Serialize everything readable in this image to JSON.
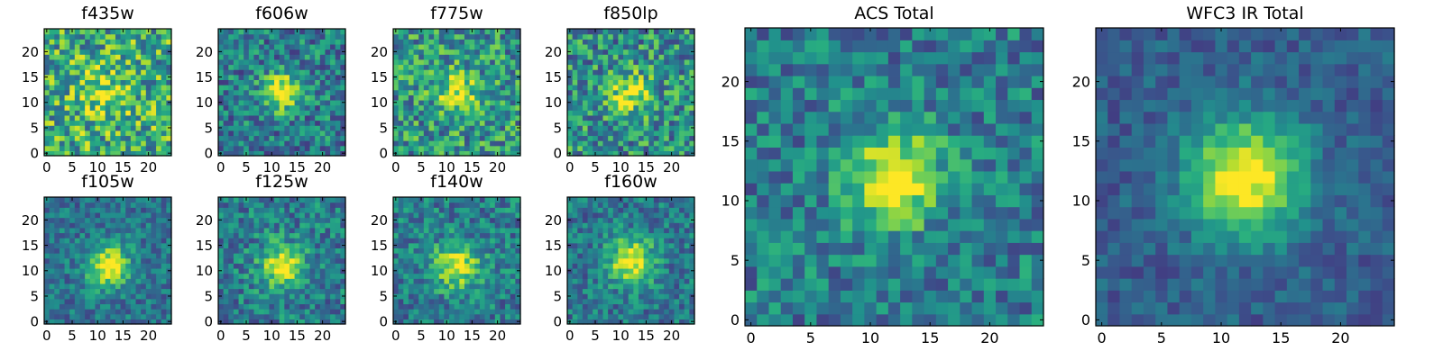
{
  "chart_data": [
    {
      "type": "heatmap",
      "title": "f435w",
      "xlim": [
        0,
        25
      ],
      "ylim": [
        0,
        25
      ],
      "x_ticks": [
        0,
        5,
        10,
        15,
        20
      ],
      "y_ticks": [
        0,
        5,
        10,
        15,
        20
      ],
      "peak": [
        11,
        12
      ],
      "peak_sigma": 3.5,
      "peak_amplitude": 0.25,
      "background": 0.62,
      "noise": 0.34,
      "seed": 11,
      "colormap": "viridis"
    },
    {
      "type": "heatmap",
      "title": "f606w",
      "xlim": [
        0,
        25
      ],
      "ylim": [
        0,
        25
      ],
      "x_ticks": [
        0,
        5,
        10,
        15,
        20
      ],
      "y_ticks": [
        0,
        5,
        10,
        15,
        20
      ],
      "peak": [
        12,
        12
      ],
      "peak_sigma": 2.6,
      "peak_amplitude": 0.62,
      "background": 0.42,
      "noise": 0.26,
      "seed": 22,
      "colormap": "viridis"
    },
    {
      "type": "heatmap",
      "title": "f775w",
      "xlim": [
        0,
        25
      ],
      "ylim": [
        0,
        25
      ],
      "x_ticks": [
        0,
        5,
        10,
        15,
        20
      ],
      "y_ticks": [
        0,
        5,
        10,
        15,
        20
      ],
      "peak": [
        12,
        12
      ],
      "peak_sigma": 2.8,
      "peak_amplitude": 0.45,
      "background": 0.52,
      "noise": 0.3,
      "seed": 33,
      "colormap": "viridis"
    },
    {
      "type": "heatmap",
      "title": "f850lp",
      "xlim": [
        0,
        25
      ],
      "ylim": [
        0,
        25
      ],
      "x_ticks": [
        0,
        5,
        10,
        15,
        20
      ],
      "y_ticks": [
        0,
        5,
        10,
        15,
        20
      ],
      "peak": [
        12,
        12
      ],
      "peak_sigma": 2.7,
      "peak_amplitude": 0.48,
      "background": 0.5,
      "noise": 0.3,
      "seed": 44,
      "colormap": "viridis"
    },
    {
      "type": "heatmap",
      "title": "f105w",
      "xlim": [
        0,
        25
      ],
      "ylim": [
        0,
        25
      ],
      "x_ticks": [
        0,
        5,
        10,
        15,
        20
      ],
      "y_ticks": [
        0,
        5,
        10,
        15,
        20
      ],
      "peak": [
        12,
        11
      ],
      "peak_sigma": 3.0,
      "peak_amplitude": 0.62,
      "background": 0.38,
      "noise": 0.18,
      "seed": 55,
      "colormap": "viridis"
    },
    {
      "type": "heatmap",
      "title": "f125w",
      "xlim": [
        0,
        25
      ],
      "ylim": [
        0,
        25
      ],
      "x_ticks": [
        0,
        5,
        10,
        15,
        20
      ],
      "y_ticks": [
        0,
        5,
        10,
        15,
        20
      ],
      "peak": [
        12,
        11
      ],
      "peak_sigma": 3.0,
      "peak_amplitude": 0.55,
      "background": 0.42,
      "noise": 0.22,
      "seed": 66,
      "colormap": "viridis"
    },
    {
      "type": "heatmap",
      "title": "f140w",
      "xlim": [
        0,
        25
      ],
      "ylim": [
        0,
        25
      ],
      "x_ticks": [
        0,
        5,
        10,
        15,
        20
      ],
      "y_ticks": [
        0,
        5,
        10,
        15,
        20
      ],
      "peak": [
        12,
        11
      ],
      "peak_sigma": 3.0,
      "peak_amplitude": 0.55,
      "background": 0.42,
      "noise": 0.22,
      "seed": 77,
      "colormap": "viridis"
    },
    {
      "type": "heatmap",
      "title": "f160w",
      "xlim": [
        0,
        25
      ],
      "ylim": [
        0,
        25
      ],
      "x_ticks": [
        0,
        5,
        10,
        15,
        20
      ],
      "y_ticks": [
        0,
        5,
        10,
        15,
        20
      ],
      "peak": [
        12,
        12
      ],
      "peak_sigma": 3.1,
      "peak_amplitude": 0.6,
      "background": 0.4,
      "noise": 0.2,
      "seed": 88,
      "colormap": "viridis"
    },
    {
      "type": "heatmap",
      "title": "ACS Total",
      "xlim": [
        0,
        25
      ],
      "ylim": [
        0,
        25
      ],
      "x_ticks": [
        0,
        5,
        10,
        15,
        20
      ],
      "y_ticks": [
        0,
        5,
        10,
        15,
        20
      ],
      "peak": [
        12,
        12
      ],
      "peak_sigma": 2.8,
      "peak_amplitude": 0.6,
      "background": 0.42,
      "noise": 0.22,
      "seed": 99,
      "colormap": "viridis"
    },
    {
      "type": "heatmap",
      "title": "WFC3 IR Total",
      "xlim": [
        0,
        25
      ],
      "ylim": [
        0,
        25
      ],
      "x_ticks": [
        0,
        5,
        10,
        15,
        20
      ],
      "y_ticks": [
        0,
        5,
        10,
        15,
        20
      ],
      "peak": [
        12,
        12
      ],
      "peak_sigma": 3.4,
      "peak_amplitude": 0.72,
      "background": 0.3,
      "noise": 0.12,
      "seed": 123,
      "colormap": "viridis"
    }
  ]
}
